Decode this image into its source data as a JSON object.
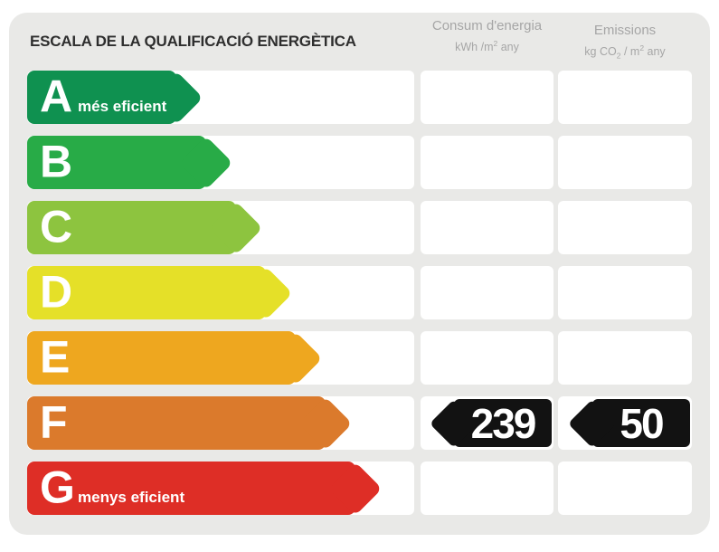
{
  "page": {
    "background": "#ffffff",
    "panel_background": "#e9e9e7"
  },
  "title": {
    "text": "ESCALA DE LA QUALIFICACIÓ ENERGÈTICA",
    "color": "#2e2e2e"
  },
  "columns": {
    "header_color": "#a6a6a6",
    "consum": {
      "label": "Consum d'energia",
      "unit_parts": [
        "kWh /m",
        "2",
        " any"
      ]
    },
    "emissions": {
      "label": "Emissions",
      "unit_parts": [
        "kg CO",
        "2",
        " / m",
        "2",
        " any"
      ]
    }
  },
  "scale": {
    "rows": [
      {
        "letter": "A",
        "label": "més eficient",
        "color": "#0f9150",
        "arrow_body_width": 165
      },
      {
        "letter": "B",
        "label": "",
        "color": "#28ab47",
        "arrow_body_width": 198
      },
      {
        "letter": "C",
        "label": "",
        "color": "#8dc43f",
        "arrow_body_width": 231
      },
      {
        "letter": "D",
        "label": "",
        "color": "#e5e028",
        "arrow_body_width": 264
      },
      {
        "letter": "E",
        "label": "",
        "color": "#eea71f",
        "arrow_body_width": 297
      },
      {
        "letter": "F",
        "label": "",
        "color": "#db7a2c",
        "arrow_body_width": 330
      },
      {
        "letter": "G",
        "label": "menys eficient",
        "color": "#de2e26",
        "arrow_body_width": 363
      }
    ]
  },
  "rating": {
    "letter": "F",
    "consum_value": "239",
    "emissions_value": "50",
    "badge_color": "#121212",
    "value_color": "#ffffff"
  },
  "chart_data": {
    "type": "bar",
    "title": "ESCALA DE LA QUALIFICACIÓ ENERGÈTICA",
    "categories": [
      "A",
      "B",
      "C",
      "D",
      "E",
      "F",
      "G"
    ],
    "bar_colors": [
      "#0f9150",
      "#28ab47",
      "#8dc43f",
      "#e5e028",
      "#eea71f",
      "#db7a2c",
      "#de2e26"
    ],
    "bar_relative_lengths": [
      165,
      198,
      231,
      264,
      297,
      330,
      363
    ],
    "category_annotations": {
      "A": "més eficient",
      "G": "menys eficient"
    },
    "value_columns": [
      {
        "name": "Consum d'energia",
        "unit": "kWh/m² any"
      },
      {
        "name": "Emissions",
        "unit": "kg CO₂/m² any"
      }
    ],
    "highlighted_rating": {
      "letter": "F",
      "consum": 239,
      "emissions": 50
    },
    "legend_position": "none",
    "grid": false
  }
}
